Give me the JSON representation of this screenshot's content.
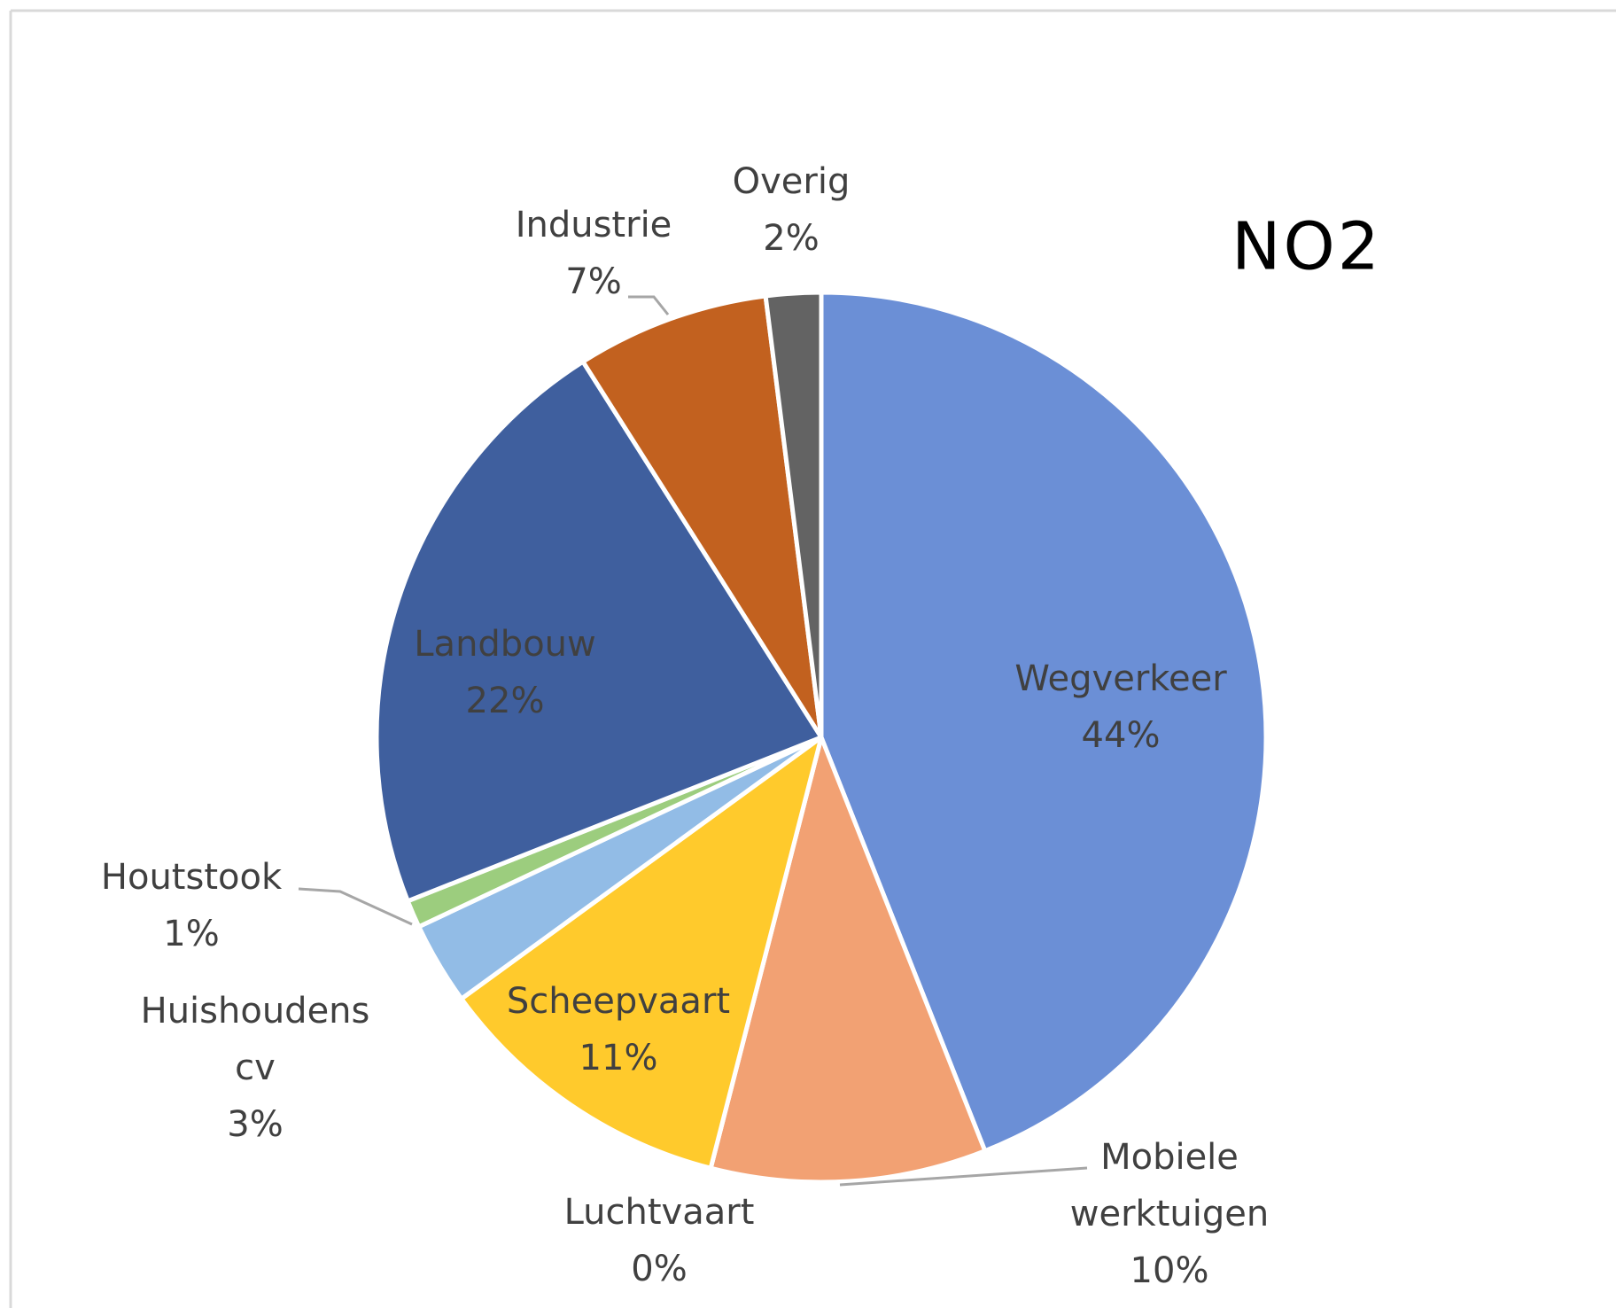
{
  "chart_data": {
    "type": "pie",
    "title": "NO2",
    "categories": [
      "Wegverkeer",
      "Mobiele werktuigen",
      "Luchtvaart",
      "Scheepvaart",
      "Huishoudens cv",
      "Houtstook",
      "Landbouw",
      "Industrie",
      "Overig"
    ],
    "values": [
      44,
      10,
      0,
      11,
      3,
      1,
      22,
      7,
      2
    ],
    "value_labels": [
      "44%",
      "10%",
      "0%",
      "11%",
      "3%",
      "1%",
      "22%",
      "7%",
      "2%"
    ],
    "colors": [
      "#6b8fd6",
      "#f2a173",
      "#a5a5a5",
      "#ffca2c",
      "#92bce6",
      "#9ccd7e",
      "#3f5f9e",
      "#c2611f",
      "#636363"
    ]
  }
}
